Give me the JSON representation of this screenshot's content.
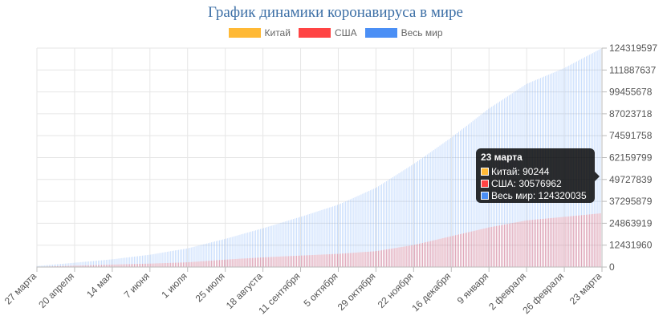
{
  "chart_data": {
    "type": "bar",
    "title": "График динамики коронавируса в мире",
    "legend_position": "top",
    "grid": true,
    "x_tick_labels": [
      "27 марта",
      "20 апреля",
      "14 мая",
      "7 июня",
      "1 июля",
      "25 июля",
      "18 августа",
      "11 сентября",
      "5 октября",
      "29 октября",
      "22 ноября",
      "16 декабря",
      "9 января",
      "2 февраля",
      "26 февраля",
      "23 марта"
    ],
    "y_tick_labels": [
      "124319597",
      "111887637",
      "99455678",
      "87023718",
      "74591758",
      "62159799",
      "49727839",
      "37295879",
      "24863919",
      "12431960",
      "0"
    ],
    "ylim": [
      0,
      124319597
    ],
    "series": [
      {
        "name": "Китай",
        "color": "#ffb935",
        "x": [
          "27 марта",
          "20 апреля",
          "14 мая",
          "7 июня",
          "1 июля",
          "25 июля",
          "18 августа",
          "11 сентября",
          "5 октября",
          "29 октября",
          "22 ноября",
          "16 декабря",
          "9 января",
          "2 февраля",
          "26 февраля",
          "23 марта"
        ],
        "values": [
          81000,
          82800,
          82900,
          83000,
          83500,
          83800,
          84800,
          85100,
          85400,
          85800,
          86400,
          86800,
          87800,
          89500,
          89900,
          90244
        ]
      },
      {
        "name": "США",
        "color": "#ff4444",
        "x": [
          "27 марта",
          "20 апреля",
          "14 мая",
          "7 июня",
          "1 июля",
          "25 июля",
          "18 августа",
          "11 сентября",
          "5 октября",
          "29 октября",
          "22 ноября",
          "16 декабря",
          "9 января",
          "2 февраля",
          "26 февраля",
          "23 марта"
        ],
        "values": [
          100000,
          780000,
          1400000,
          1950000,
          2700000,
          4200000,
          5500000,
          6500000,
          7500000,
          9000000,
          12500000,
          17500000,
          22500000,
          26500000,
          28500000,
          30576962
        ]
      },
      {
        "name": "Весь мир",
        "color": "#4b8ff5",
        "x": [
          "27 марта",
          "20 апреля",
          "14 мая",
          "7 июня",
          "1 июля",
          "25 июля",
          "18 августа",
          "11 сентября",
          "5 октября",
          "29 октября",
          "22 ноября",
          "16 декабря",
          "9 января",
          "2 февраля",
          "26 февраля",
          "23 марта"
        ],
        "values": [
          560000,
          2450000,
          4400000,
          7000000,
          10600000,
          16000000,
          22000000,
          28500000,
          35400000,
          45000000,
          58500000,
          73500000,
          90000000,
          104000000,
          113000000,
          124320035
        ]
      }
    ]
  },
  "tooltip": {
    "title": "23 марта",
    "rows": [
      "Китай: 90244",
      "США: 30576962",
      "Весь мир: 124320035"
    ]
  }
}
